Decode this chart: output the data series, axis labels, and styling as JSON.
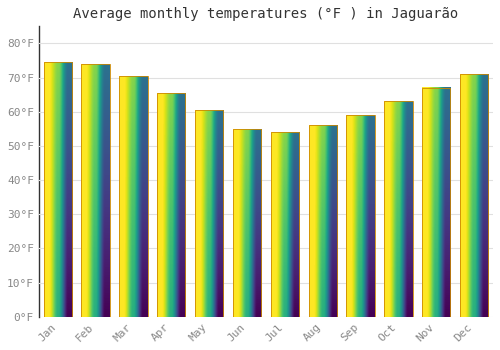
{
  "title": "Average monthly temperatures (°F ) in Jaguarão",
  "months": [
    "Jan",
    "Feb",
    "Mar",
    "Apr",
    "May",
    "Jun",
    "Jul",
    "Aug",
    "Sep",
    "Oct",
    "Nov",
    "Dec"
  ],
  "values": [
    74.5,
    74.0,
    70.5,
    65.5,
    60.5,
    55.0,
    54.0,
    56.0,
    59.0,
    63.0,
    67.0,
    71.0
  ],
  "bar_color_top": "#FFD060",
  "bar_color_bottom": "#FFA000",
  "bar_edge_color": "#CC8800",
  "background_color": "#FFFFFF",
  "plot_bg_color": "#FFFFFF",
  "grid_color": "#E0E0E0",
  "ylim": [
    0,
    85
  ],
  "yticks": [
    0,
    10,
    20,
    30,
    40,
    50,
    60,
    70,
    80
  ],
  "ytick_labels": [
    "0°F",
    "10°F",
    "20°F",
    "30°F",
    "40°F",
    "50°F",
    "60°F",
    "70°F",
    "80°F"
  ],
  "title_fontsize": 10,
  "tick_fontsize": 8,
  "tick_color": "#888888",
  "font_family": "monospace",
  "bar_width": 0.75
}
